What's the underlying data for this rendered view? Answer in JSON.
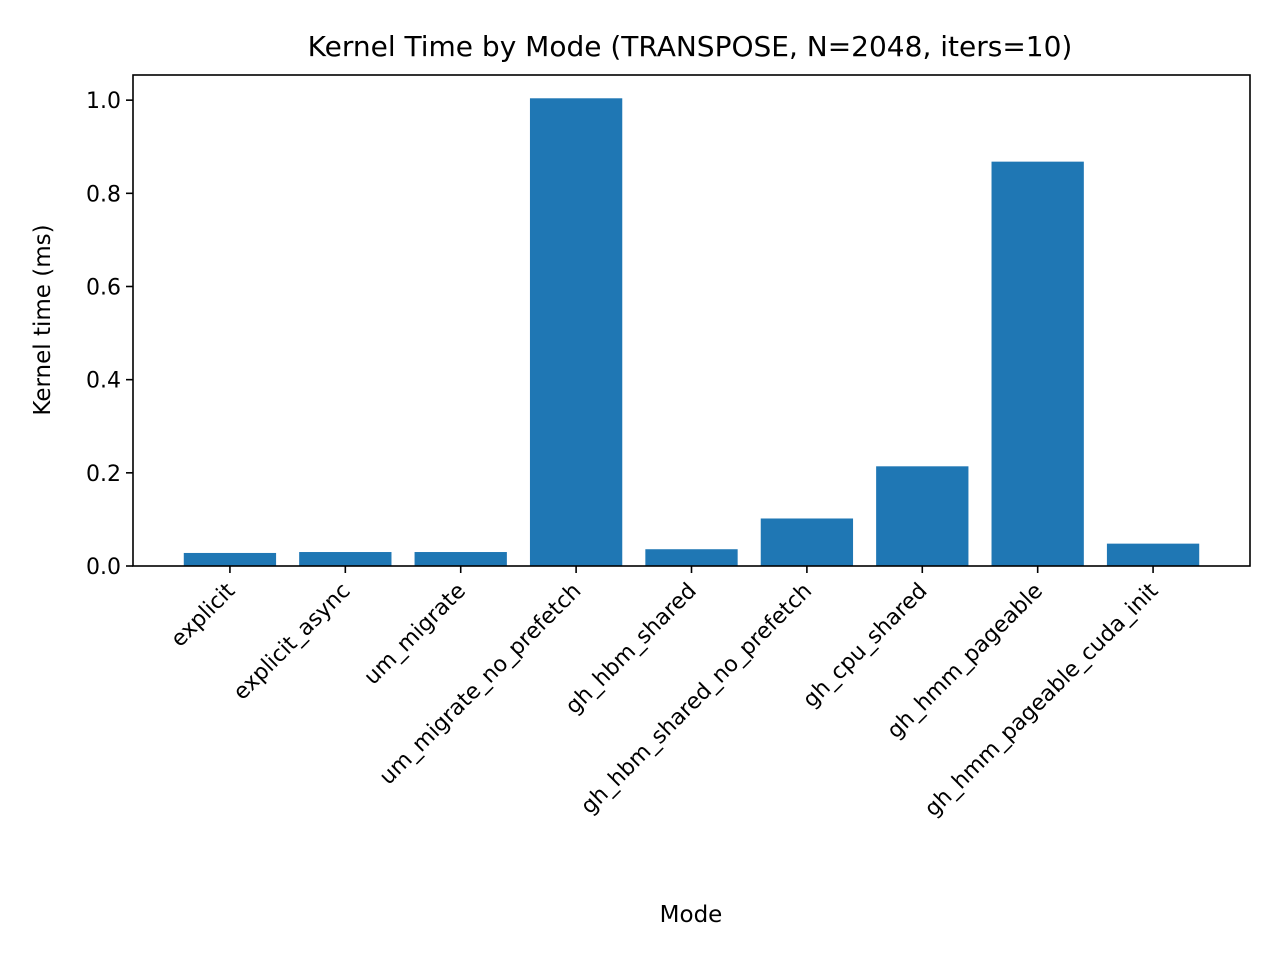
{
  "chart_data": {
    "type": "bar",
    "title": "Kernel Time by Mode (TRANSPOSE, N=2048, iters=10)",
    "xlabel": "Mode",
    "ylabel": "Kernel time (ms)",
    "categories": [
      "explicit",
      "explicit_async",
      "um_migrate",
      "um_migrate_no_prefetch",
      "gh_hbm_shared",
      "gh_hbm_shared_no_prefetch",
      "gh_cpu_shared",
      "gh_hmm_pageable",
      "gh_hmm_pageable_cuda_init"
    ],
    "values": [
      0.028,
      0.03,
      0.03,
      1.004,
      0.036,
      0.102,
      0.214,
      0.868,
      0.048
    ],
    "ylim": [
      0,
      1.054
    ],
    "yticks": [
      0.0,
      0.2,
      0.4,
      0.6,
      0.8,
      1.0
    ],
    "ytick_labels": [
      "0.0",
      "0.2",
      "0.4",
      "0.6",
      "0.8",
      "1.0"
    ],
    "bar_color": "#1f77b4",
    "grid": false,
    "legend": "none"
  }
}
